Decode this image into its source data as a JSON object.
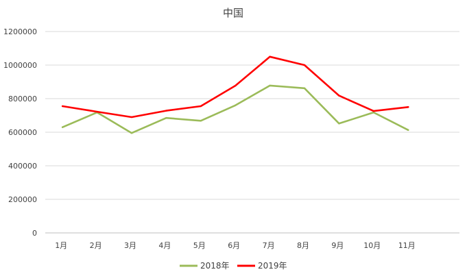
{
  "chart_data": {
    "type": "line",
    "title": "中国",
    "xlabel": "",
    "ylabel": "",
    "categories": [
      "1月",
      "2月",
      "3月",
      "4月",
      "5月",
      "6月",
      "7月",
      "8月",
      "9月",
      "10月",
      "11月"
    ],
    "yticks": [
      "0",
      "200000",
      "400000",
      "600000",
      "800000",
      "1000000",
      "1200000"
    ],
    "ylim": [
      0,
      1200000
    ],
    "grid": true,
    "legend": "bottom",
    "series": [
      {
        "name": "2018年",
        "color": "#9bbb59",
        "values": [
          630000,
          718000,
          595000,
          685000,
          668000,
          760000,
          878000,
          862000,
          652000,
          718000,
          613000
        ]
      },
      {
        "name": "2019年",
        "color": "#ff0000",
        "values": [
          755000,
          722000,
          690000,
          728000,
          755000,
          877000,
          1050000,
          1000000,
          818000,
          726000,
          750000
        ]
      }
    ]
  }
}
